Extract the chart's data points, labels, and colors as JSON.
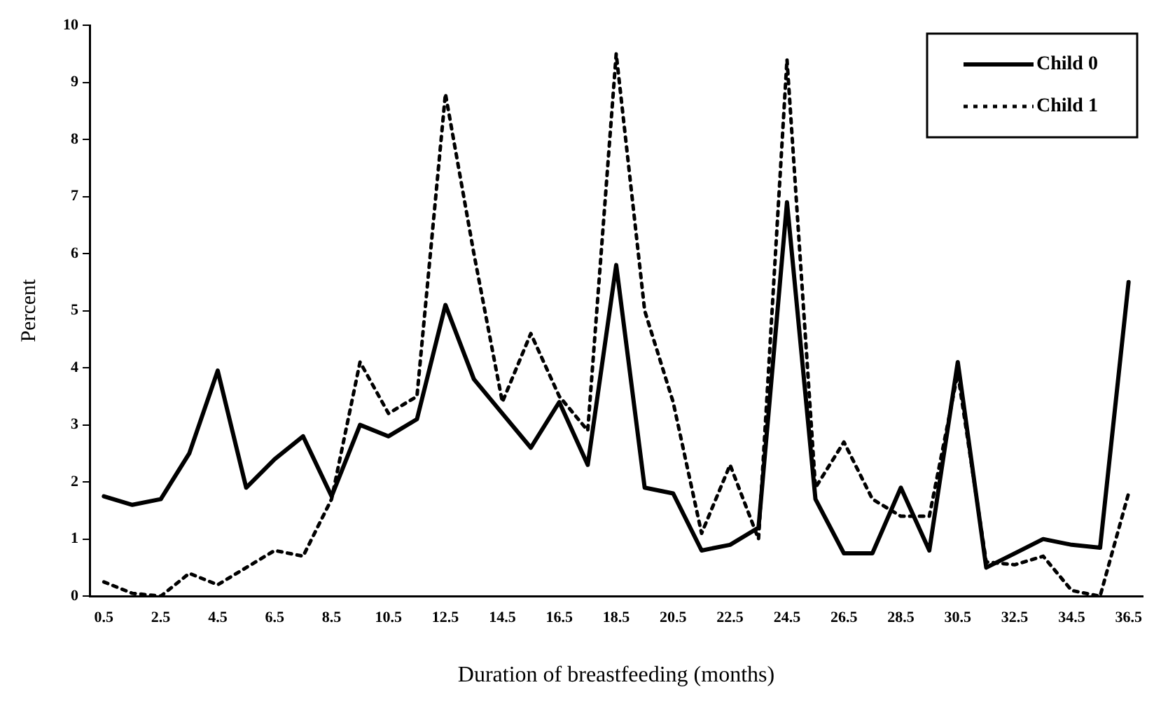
{
  "chart_data": {
    "type": "line",
    "xlabel": "Duration of breastfeeding (months)",
    "ylabel": "Percent",
    "categories": [
      "0.5",
      null,
      "2.5",
      null,
      "4.5",
      null,
      "6.5",
      null,
      "8.5",
      null,
      "10.5",
      null,
      "12.5",
      null,
      "14.5",
      null,
      "16.5",
      null,
      "18.5",
      null,
      "20.5",
      null,
      "22.5",
      null,
      "24.5",
      null,
      "26.5",
      null,
      "28.5",
      null,
      "30.5",
      null,
      "32.5",
      null,
      "34.5",
      null,
      "36.5"
    ],
    "series": [
      {
        "name": "Child 0",
        "color": "#000000",
        "line_style": "solid",
        "values": [
          1.75,
          1.6,
          1.7,
          2.5,
          3.95,
          1.9,
          2.4,
          2.8,
          1.75,
          3.0,
          2.8,
          3.1,
          5.1,
          3.8,
          3.2,
          2.6,
          3.4,
          2.3,
          5.8,
          1.9,
          1.8,
          0.8,
          0.9,
          1.2,
          6.9,
          1.7,
          0.75,
          0.75,
          1.9,
          0.8,
          4.1,
          0.5,
          0.75,
          1.0,
          0.9,
          0.85,
          5.5
        ]
      },
      {
        "name": "Child 1",
        "color": "#000000",
        "line_style": "dotted",
        "values": [
          0.25,
          0.05,
          0.0,
          0.4,
          0.2,
          0.5,
          0.8,
          0.7,
          1.7,
          4.1,
          3.2,
          3.5,
          8.8,
          6.0,
          3.4,
          4.6,
          3.5,
          2.9,
          9.5,
          5.0,
          3.4,
          1.1,
          2.3,
          1.0,
          9.4,
          1.9,
          2.7,
          1.7,
          1.4,
          1.4,
          3.9,
          0.6,
          0.55,
          0.7,
          0.1,
          0.0,
          1.8
        ]
      }
    ],
    "ylim": [
      0,
      10
    ],
    "yticks": [
      0,
      1,
      2,
      3,
      4,
      5,
      6,
      7,
      8,
      9,
      10
    ],
    "grid": false,
    "legend": "top right",
    "marker": "none"
  }
}
